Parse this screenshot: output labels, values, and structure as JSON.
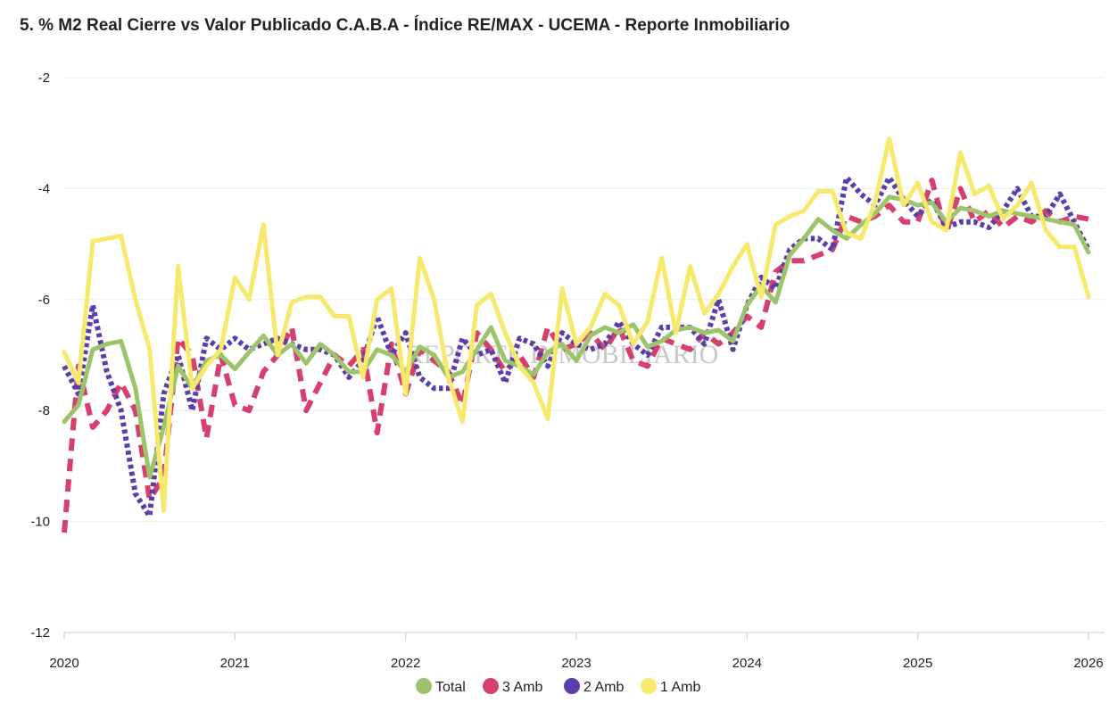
{
  "title": "5. % M2 Real Cierre vs Valor Publicado C.A.B.A - Índice RE/MAX - UCEMA - Reporte Inmobiliario",
  "watermark": "REPORTE INMOBILIARIO",
  "chart_data": {
    "type": "line",
    "title": "5. % M2 Real Cierre vs Valor Publicado C.A.B.A - Índice RE/MAX - UCEMA - Reporte Inmobiliario",
    "xlabel": "",
    "ylabel": "",
    "xlim": [
      2020,
      2026
    ],
    "ylim": [
      -12,
      -2
    ],
    "x_ticks": [
      "2020",
      "2021",
      "2022",
      "2023",
      "2024",
      "2025",
      "2026"
    ],
    "y_ticks": [
      "-2",
      "-4",
      "-6",
      "-8",
      "-10",
      "-12"
    ],
    "grid": "horizontal",
    "legend": "bottom",
    "x": [
      2020.0,
      2020.083,
      2020.167,
      2020.25,
      2020.333,
      2020.417,
      2020.5,
      2020.583,
      2020.667,
      2020.75,
      2020.833,
      2020.917,
      2021.0,
      2021.083,
      2021.167,
      2021.25,
      2021.333,
      2021.417,
      2021.5,
      2021.583,
      2021.667,
      2021.75,
      2021.833,
      2021.917,
      2022.0,
      2022.083,
      2022.167,
      2022.25,
      2022.333,
      2022.417,
      2022.5,
      2022.583,
      2022.667,
      2022.75,
      2022.833,
      2022.917,
      2023.0,
      2023.083,
      2023.167,
      2023.25,
      2023.333,
      2023.417,
      2023.5,
      2023.583,
      2023.667,
      2023.75,
      2023.833,
      2023.917,
      2024.0,
      2024.083,
      2024.167,
      2024.25,
      2024.333,
      2024.417,
      2024.5,
      2024.583,
      2024.667,
      2024.75,
      2024.833,
      2024.917,
      2025.0,
      2025.083,
      2025.167,
      2025.25,
      2025.333,
      2025.417,
      2025.5,
      2025.583,
      2025.667,
      2025.75,
      2025.833,
      2025.917,
      2026.0
    ],
    "series": [
      {
        "name": "Total",
        "color": "#9cc46b",
        "dash": "solid",
        "values": [
          -8.2,
          -7.9,
          -6.9,
          -6.8,
          -6.75,
          -7.6,
          -9.2,
          -8.3,
          -7.2,
          -7.6,
          -7.1,
          -7.0,
          -7.25,
          -6.95,
          -6.65,
          -7.0,
          -6.8,
          -7.15,
          -6.8,
          -7.0,
          -7.3,
          -7.3,
          -6.9,
          -7.0,
          -7.3,
          -6.85,
          -7.0,
          -7.4,
          -7.3,
          -6.9,
          -6.5,
          -7.1,
          -7.2,
          -7.35,
          -6.95,
          -6.8,
          -7.1,
          -6.65,
          -6.5,
          -6.6,
          -6.45,
          -6.85,
          -6.75,
          -6.55,
          -6.5,
          -6.6,
          -6.55,
          -6.75,
          -6.1,
          -5.75,
          -6.05,
          -5.2,
          -4.9,
          -4.55,
          -4.75,
          -4.9,
          -4.65,
          -4.45,
          -4.15,
          -4.2,
          -4.3,
          -4.25,
          -4.6,
          -4.35,
          -4.4,
          -4.5,
          -4.4,
          -4.45,
          -4.5,
          -4.55,
          -4.6,
          -4.65,
          -5.15
        ]
      },
      {
        "name": "3 Amb",
        "color": "#d6406d",
        "dash": "dashed",
        "values": [
          -10.2,
          -7.2,
          -8.3,
          -8.0,
          -7.5,
          -8.0,
          -9.6,
          -9.2,
          -6.7,
          -7.0,
          -8.5,
          -7.0,
          -7.9,
          -8.0,
          -7.3,
          -7.0,
          -6.5,
          -8.0,
          -7.5,
          -7.0,
          -7.2,
          -6.9,
          -8.4,
          -6.8,
          -7.7,
          -6.9,
          -7.1,
          -7.3,
          -7.9,
          -6.6,
          -6.9,
          -7.3,
          -7.0,
          -7.4,
          -6.5,
          -6.9,
          -6.8,
          -6.6,
          -6.9,
          -6.5,
          -7.1,
          -7.2,
          -6.7,
          -6.8,
          -6.9,
          -6.6,
          -6.8,
          -6.6,
          -6.3,
          -6.5,
          -5.5,
          -5.3,
          -5.3,
          -5.2,
          -5.1,
          -4.5,
          -4.6,
          -4.5,
          -4.3,
          -4.6,
          -4.6,
          -3.85,
          -4.8,
          -4.0,
          -4.6,
          -4.4,
          -4.7,
          -4.5,
          -4.6,
          -4.4,
          -4.6,
          -4.5,
          -4.55
        ]
      },
      {
        "name": "2 Amb",
        "color": "#5b3dab",
        "dash": "dotted",
        "values": [
          -7.2,
          -7.7,
          -6.1,
          -7.3,
          -8.0,
          -9.5,
          -9.9,
          -7.7,
          -7.0,
          -8.0,
          -6.7,
          -6.9,
          -6.7,
          -6.9,
          -6.8,
          -6.7,
          -6.8,
          -6.9,
          -6.9,
          -7.0,
          -7.4,
          -7.1,
          -6.3,
          -7.0,
          -6.6,
          -7.4,
          -7.6,
          -7.6,
          -6.7,
          -7.0,
          -6.9,
          -7.5,
          -6.7,
          -6.8,
          -7.2,
          -6.6,
          -6.8,
          -6.9,
          -6.8,
          -6.4,
          -6.8,
          -7.0,
          -6.5,
          -6.5,
          -6.5,
          -6.8,
          -6.0,
          -6.9,
          -6.1,
          -5.6,
          -5.8,
          -5.1,
          -4.9,
          -4.9,
          -5.1,
          -3.8,
          -4.1,
          -4.3,
          -3.8,
          -4.2,
          -4.5,
          -4.2,
          -4.7,
          -4.6,
          -4.6,
          -4.7,
          -4.4,
          -4.0,
          -4.5,
          -4.5,
          -4.1,
          -4.6,
          -5.1
        ]
      },
      {
        "name": "1 Amb",
        "color": "#f7e96c",
        "dash": "solid",
        "values": [
          -6.95,
          -7.5,
          -4.95,
          -4.9,
          -4.85,
          -6.0,
          -6.9,
          -9.8,
          -5.4,
          -7.6,
          -7.2,
          -6.9,
          -5.6,
          -6.0,
          -4.65,
          -7.0,
          -6.05,
          -5.95,
          -5.95,
          -6.3,
          -6.3,
          -7.4,
          -6.0,
          -5.8,
          -7.7,
          -5.25,
          -6.0,
          -7.4,
          -8.2,
          -6.1,
          -5.9,
          -6.6,
          -7.2,
          -7.5,
          -8.15,
          -5.8,
          -6.8,
          -6.5,
          -5.9,
          -6.1,
          -6.8,
          -6.4,
          -5.25,
          -6.6,
          -5.4,
          -6.25,
          -5.9,
          -5.4,
          -5.0,
          -5.95,
          -4.65,
          -4.5,
          -4.4,
          -4.05,
          -4.05,
          -4.8,
          -4.9,
          -4.25,
          -3.1,
          -4.3,
          -3.9,
          -4.6,
          -4.75,
          -3.35,
          -4.1,
          -3.95,
          -4.55,
          -4.3,
          -3.9,
          -4.75,
          -5.05,
          -5.05,
          -5.95
        ]
      }
    ]
  }
}
